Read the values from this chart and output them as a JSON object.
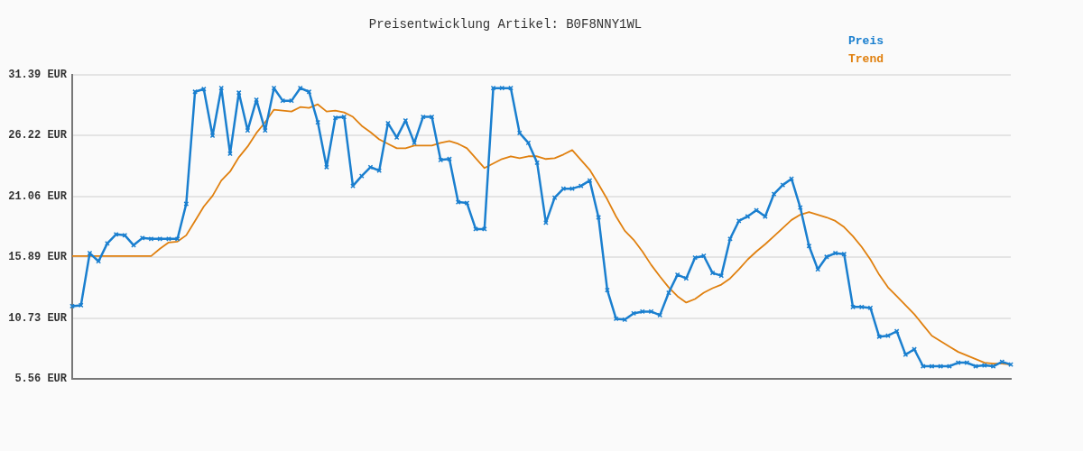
{
  "chart_data": {
    "type": "line",
    "title": "Preisentwicklung Artikel: B0F8NNY1WL",
    "categories": [
      null,
      null,
      null,
      null,
      null,
      null,
      null,
      null,
      null,
      null,
      null,
      null,
      null,
      null,
      null,
      null,
      null,
      null,
      null,
      null,
      null,
      null,
      null,
      null,
      null,
      null,
      null,
      null,
      null,
      null,
      null,
      null,
      null,
      null,
      null,
      null,
      null,
      null,
      null,
      null,
      null,
      null,
      null,
      null,
      null,
      null,
      null,
      null,
      null,
      null,
      null,
      null,
      null,
      null,
      null,
      null,
      null,
      null,
      null,
      null,
      null,
      null,
      null,
      null,
      null,
      null,
      null,
      null,
      null,
      null,
      null,
      null,
      null,
      null,
      null,
      null,
      null,
      null,
      null,
      null,
      null,
      null,
      null,
      null,
      null,
      null,
      null,
      null,
      null,
      null,
      null,
      null,
      null,
      null,
      null,
      null,
      null,
      null,
      null,
      null,
      null,
      null,
      null,
      null,
      null,
      null,
      null,
      null
    ],
    "series": [
      {
        "name": "Preis",
        "color": "#1a7fcf",
        "marker": "cross",
        "values": [
          11.73,
          11.81,
          16.23,
          15.54,
          17.06,
          17.83,
          17.75,
          16.91,
          17.52,
          17.45,
          17.45,
          17.45,
          17.45,
          20.42,
          29.94,
          30.17,
          26.21,
          30.25,
          24.68,
          29.86,
          26.66,
          29.26,
          26.66,
          30.25,
          29.18,
          29.18,
          30.25,
          29.94,
          27.35,
          23.54,
          27.73,
          27.81,
          21.94,
          22.78,
          23.54,
          23.24,
          27.27,
          26.06,
          27.5,
          25.6,
          27.81,
          27.81,
          24.15,
          24.23,
          20.57,
          20.49,
          18.28,
          18.28,
          30.25,
          30.25,
          30.25,
          26.44,
          25.6,
          23.92,
          18.82,
          20.95,
          21.71,
          21.71,
          21.94,
          22.4,
          19.27,
          13.1,
          10.66,
          10.59,
          11.12,
          11.27,
          11.27,
          10.97,
          12.87,
          14.4,
          14.09,
          15.85,
          16.0,
          14.55,
          14.32,
          17.45,
          18.97,
          19.35,
          19.88,
          19.35,
          21.26,
          22.02,
          22.55,
          20.11,
          16.84,
          14.86,
          15.92,
          16.23,
          16.15,
          11.66,
          11.66,
          11.58,
          9.14,
          9.22,
          9.6,
          7.62,
          8.07,
          6.63,
          6.63,
          6.63,
          6.63,
          6.93,
          6.93,
          6.63,
          6.7,
          6.63,
          7.01,
          6.78
        ]
      },
      {
        "name": "Trend",
        "color": "#e0800f",
        "marker": "none",
        "values": [
          15.99,
          15.99,
          15.99,
          15.99,
          15.99,
          15.99,
          15.99,
          15.99,
          15.99,
          15.99,
          16.61,
          17.14,
          17.22,
          17.75,
          18.97,
          20.19,
          21.1,
          22.4,
          23.16,
          24.38,
          25.29,
          26.44,
          27.35,
          28.42,
          28.34,
          28.26,
          28.64,
          28.57,
          28.87,
          28.26,
          28.34,
          28.19,
          27.81,
          27.05,
          26.51,
          25.9,
          25.52,
          25.14,
          25.14,
          25.37,
          25.37,
          25.37,
          25.6,
          25.75,
          25.52,
          25.14,
          24.3,
          23.46,
          23.85,
          24.23,
          24.46,
          24.3,
          24.46,
          24.46,
          24.23,
          24.3,
          24.61,
          24.99,
          24.15,
          23.31,
          22.09,
          20.8,
          19.35,
          18.13,
          17.37,
          16.38,
          15.24,
          14.25,
          13.33,
          12.57,
          12.04,
          12.34,
          12.87,
          13.26,
          13.56,
          14.09,
          14.86,
          15.69,
          16.38,
          16.99,
          17.67,
          18.36,
          19.05,
          19.5,
          19.73,
          19.5,
          19.27,
          18.97,
          18.44,
          17.67,
          16.76,
          15.69,
          14.4,
          13.33,
          12.57,
          11.81,
          11.05,
          10.13,
          9.22,
          8.76,
          8.3,
          7.85,
          7.54,
          7.24,
          6.93,
          6.86,
          6.86,
          6.78
        ]
      }
    ],
    "ylim": [
      5.56,
      31.39
    ],
    "yticks": [
      {
        "value": 5.56,
        "label": "5.56 EUR"
      },
      {
        "value": 10.73,
        "label": "10.73 EUR"
      },
      {
        "value": 15.89,
        "label": "15.89 EUR"
      },
      {
        "value": 21.06,
        "label": "21.06 EUR"
      },
      {
        "value": 26.22,
        "label": "26.22 EUR"
      },
      {
        "value": 31.39,
        "label": "31.39 EUR"
      }
    ],
    "grid": "y",
    "legend": "top right",
    "tick_labels": "y",
    "line_style": "solid"
  }
}
